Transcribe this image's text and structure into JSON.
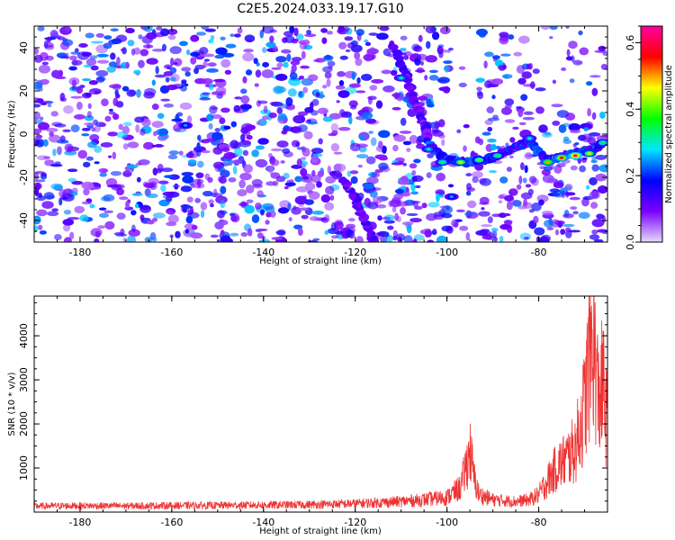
{
  "title": "C2E5.2024.033.19.17.G10",
  "chart_data": [
    {
      "type": "heatmap",
      "xlabel": "Height of straight line (km)",
      "ylabel": "Frequency (Hz)",
      "xlim": [
        -190,
        -65
      ],
      "ylim": [
        -50,
        50
      ],
      "xticks": [
        -180,
        -160,
        -140,
        -120,
        -100,
        -80
      ],
      "yticks": [
        -40,
        -20,
        0,
        20,
        40
      ],
      "colorbar": {
        "label": "Normalized spectral amplitude",
        "range": [
          0,
          0.65
        ],
        "ticks": [
          0.0,
          0.2,
          0.4,
          0.6
        ],
        "colormap": [
          "#e6d9ff",
          "#7a00ff",
          "#0000ff",
          "#00e6ff",
          "#00ff00",
          "#ffff00",
          "#ff0000",
          "#ff00a0"
        ]
      },
      "features": {
        "track_a": [
          [
            -116,
            -50
          ],
          [
            -118,
            -40
          ],
          [
            -120,
            -30
          ],
          [
            -123,
            -20
          ]
        ],
        "track_b": [
          [
            -112,
            42
          ],
          [
            -109,
            28
          ],
          [
            -107,
            15
          ],
          [
            -105,
            5
          ],
          [
            -104,
            -3
          ]
        ],
        "track_c": [
          [
            -104,
            -5
          ],
          [
            -100,
            -12
          ],
          [
            -95,
            -13
          ],
          [
            -90,
            -11
          ],
          [
            -85,
            -6
          ],
          [
            -82,
            -3
          ],
          [
            -78,
            -12
          ],
          [
            -74,
            -10
          ],
          [
            -70,
            -8
          ],
          [
            -66,
            -5
          ]
        ],
        "blobs": [
          {
            "x": -157,
            "y": 4,
            "amp": 0.25
          },
          {
            "x": -104,
            "y": -7,
            "amp": 0.3
          },
          {
            "x": -101,
            "y": -13,
            "amp": 0.35
          },
          {
            "x": -97,
            "y": -13,
            "amp": 0.45
          },
          {
            "x": -93,
            "y": -12,
            "amp": 0.4
          },
          {
            "x": -89,
            "y": -10,
            "amp": 0.35
          },
          {
            "x": -82,
            "y": -2,
            "amp": 0.3
          },
          {
            "x": -78,
            "y": -13,
            "amp": 0.5
          },
          {
            "x": -75,
            "y": -11,
            "amp": 0.55
          },
          {
            "x": -72,
            "y": -10,
            "amp": 0.6
          },
          {
            "x": -69,
            "y": -9,
            "amp": 0.45
          },
          {
            "x": -66,
            "y": -4,
            "amp": 0.35
          },
          {
            "x": -110,
            "y": 26,
            "amp": 0.3
          },
          {
            "x": -99,
            "y": -29,
            "amp": 0.25
          }
        ]
      }
    },
    {
      "type": "line",
      "xlabel": "Height of straight line (km)",
      "ylabel": "SNR (10 * v/v)",
      "xlim": [
        -190,
        -65
      ],
      "ylim": [
        0,
        4900
      ],
      "xticks": [
        -180,
        -160,
        -140,
        -120,
        -100,
        -80
      ],
      "yticks": [
        1000,
        2000,
        3000,
        4000
      ],
      "series": [
        {
          "color": "#ee3333",
          "x": [
            -190,
            -180,
            -170,
            -160,
            -150,
            -140,
            -130,
            -120,
            -110,
            -105,
            -100,
            -97,
            -96,
            -95,
            -94,
            -93,
            -90,
            -85,
            -82,
            -80,
            -78,
            -76,
            -74,
            -72,
            -70,
            -69,
            -68,
            -67,
            -66,
            -65
          ],
          "y": [
            170,
            180,
            175,
            185,
            190,
            200,
            210,
            240,
            300,
            350,
            420,
            700,
            1200,
            1750,
            900,
            500,
            350,
            300,
            350,
            500,
            900,
            1300,
            1500,
            1800,
            3000,
            4300,
            4900,
            3200,
            3600,
            2400
          ]
        }
      ]
    }
  ]
}
